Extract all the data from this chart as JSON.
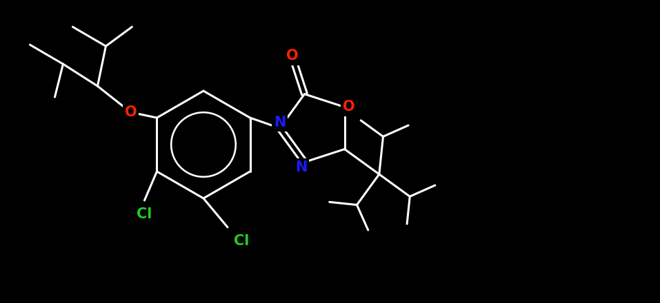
{
  "background_color": "#000000",
  "bond_color": "#ffffff",
  "atom_colors": {
    "O": "#ff2200",
    "N": "#1a1aff",
    "Cl": "#22cc22",
    "C": "#ffffff"
  },
  "figsize": [
    9.57,
    4.4
  ],
  "dpi": 100,
  "xlim": [
    0,
    9.57
  ],
  "ylim": [
    0,
    4.4
  ]
}
